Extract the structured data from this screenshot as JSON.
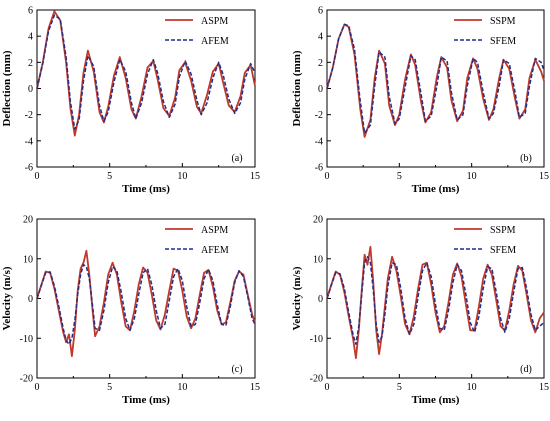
{
  "colors": {
    "series1": "#c0392b",
    "series2": "#1f2f8c"
  },
  "chart_data": [
    {
      "type": "line",
      "panel_tag": "(a)",
      "xlabel": "Time (ms)",
      "ylabel": "Deflection (mm)",
      "xlim": [
        0,
        15
      ],
      "ylim": [
        -6,
        6
      ],
      "xticks": [
        "0",
        "5",
        "10",
        "15"
      ],
      "yticks": [
        "6",
        "4",
        "2",
        "0",
        "-2",
        "-4",
        "-6"
      ],
      "legend_position": "top-right",
      "series": [
        {
          "name": "ASPM",
          "style": "solid",
          "x": [
            0,
            0.4,
            0.8,
            1.2,
            1.6,
            2.0,
            2.3,
            2.6,
            2.9,
            3.2,
            3.5,
            3.9,
            4.3,
            4.6,
            4.9,
            5.3,
            5.7,
            6.1,
            6.5,
            6.8,
            7.2,
            7.6,
            8.0,
            8.3,
            8.7,
            9.1,
            9.5,
            9.8,
            10.2,
            10.6,
            11.0,
            11.3,
            11.7,
            12.1,
            12.5,
            12.8,
            13.2,
            13.6,
            14.0,
            14.3,
            14.7,
            15.0
          ],
          "y": [
            0,
            2.0,
            4.6,
            5.9,
            5.2,
            2.0,
            -1.5,
            -3.6,
            -2.0,
            1.2,
            2.9,
            1.3,
            -1.8,
            -2.6,
            -1.4,
            1.0,
            2.4,
            0.8,
            -1.6,
            -2.3,
            -0.6,
            1.6,
            2.1,
            0.7,
            -1.5,
            -2.1,
            -0.7,
            1.4,
            2.0,
            0.6,
            -1.4,
            -1.9,
            -0.5,
            1.3,
            1.9,
            0.5,
            -1.3,
            -1.8,
            -0.6,
            1.2,
            1.8,
            0.2
          ]
        },
        {
          "name": "AFEM",
          "style": "dashed",
          "x": [
            0,
            0.4,
            0.8,
            1.2,
            1.6,
            2.0,
            2.3,
            2.6,
            2.9,
            3.2,
            3.5,
            3.9,
            4.3,
            4.6,
            4.9,
            5.3,
            5.7,
            6.1,
            6.5,
            6.8,
            7.2,
            7.6,
            8.0,
            8.3,
            8.7,
            9.1,
            9.5,
            9.8,
            10.2,
            10.6,
            11.0,
            11.3,
            11.7,
            12.1,
            12.5,
            12.8,
            13.2,
            13.6,
            14.0,
            14.3,
            14.7,
            15.0
          ],
          "y": [
            0,
            1.9,
            4.4,
            5.6,
            5.3,
            2.4,
            -1.0,
            -3.1,
            -2.4,
            0.6,
            2.5,
            1.7,
            -1.3,
            -2.5,
            -1.8,
            0.5,
            2.2,
            1.3,
            -1.1,
            -2.3,
            -1.1,
            1.1,
            2.2,
            1.2,
            -1.0,
            -2.2,
            -1.2,
            0.9,
            2.1,
            1.1,
            -0.9,
            -2.0,
            -1.1,
            0.8,
            2.0,
            1.1,
            -0.8,
            -1.9,
            -1.1,
            0.7,
            1.9,
            1.2
          ]
        }
      ]
    },
    {
      "type": "line",
      "panel_tag": "(b)",
      "xlabel": "Time (ms)",
      "ylabel": "Deflection (mm)",
      "xlim": [
        0,
        15
      ],
      "ylim": [
        -6,
        6
      ],
      "xticks": [
        "0",
        "5",
        "10",
        "15"
      ],
      "yticks": [
        "6",
        "4",
        "2",
        "0",
        "-2",
        "-4",
        "-6"
      ],
      "legend_position": "top-right",
      "series": [
        {
          "name": "SSPM",
          "style": "solid",
          "x": [
            0,
            0.4,
            0.8,
            1.2,
            1.5,
            1.9,
            2.3,
            2.6,
            3.0,
            3.3,
            3.6,
            4.0,
            4.3,
            4.7,
            5.0,
            5.4,
            5.8,
            6.1,
            6.5,
            6.8,
            7.2,
            7.6,
            7.9,
            8.3,
            8.6,
            9.0,
            9.4,
            9.7,
            10.1,
            10.4,
            10.8,
            11.2,
            11.5,
            11.9,
            12.2,
            12.6,
            13.0,
            13.3,
            13.7,
            14.0,
            14.4,
            14.8,
            15.0
          ],
          "y": [
            0,
            1.6,
            3.8,
            4.9,
            4.7,
            2.6,
            -1.6,
            -3.7,
            -2.4,
            0.8,
            2.9,
            1.9,
            -1.3,
            -2.8,
            -2.0,
            0.7,
            2.6,
            1.8,
            -1.0,
            -2.6,
            -1.8,
            0.9,
            2.4,
            1.6,
            -0.9,
            -2.5,
            -1.7,
            0.8,
            2.3,
            1.5,
            -0.8,
            -2.4,
            -1.6,
            0.8,
            2.2,
            1.5,
            -0.8,
            -2.3,
            -1.6,
            0.8,
            2.2,
            1.3,
            0.6
          ]
        },
        {
          "name": "SFEM",
          "style": "dashed",
          "x": [
            0,
            0.4,
            0.8,
            1.2,
            1.5,
            1.9,
            2.3,
            2.6,
            3.0,
            3.3,
            3.6,
            4.0,
            4.3,
            4.7,
            5.0,
            5.4,
            5.8,
            6.1,
            6.5,
            6.8,
            7.2,
            7.6,
            7.9,
            8.3,
            8.6,
            9.0,
            9.4,
            9.7,
            10.1,
            10.4,
            10.8,
            11.2,
            11.5,
            11.9,
            12.2,
            12.6,
            13.0,
            13.3,
            13.7,
            14.0,
            14.4,
            14.8,
            15.0
          ],
          "y": [
            0,
            1.6,
            3.8,
            4.9,
            4.8,
            3.0,
            -1.0,
            -3.4,
            -2.8,
            0.2,
            2.8,
            2.4,
            -0.6,
            -2.7,
            -2.3,
            0.1,
            2.5,
            2.2,
            -0.4,
            -2.5,
            -2.1,
            0.2,
            2.4,
            2.1,
            -0.3,
            -2.4,
            -2.0,
            0.2,
            2.3,
            2.0,
            -0.3,
            -2.3,
            -1.9,
            0.2,
            2.2,
            1.9,
            -0.3,
            -2.2,
            -1.9,
            0.2,
            2.3,
            2.0,
            1.4
          ]
        }
      ]
    },
    {
      "type": "line",
      "panel_tag": "(c)",
      "xlabel": "Time (ms)",
      "ylabel": "Velocity (m/s)",
      "xlim": [
        0,
        15
      ],
      "ylim": [
        -20,
        20
      ],
      "xticks": [
        "0",
        "5",
        "10",
        "15"
      ],
      "yticks": [
        "20",
        "10",
        "0",
        "-10",
        "-20"
      ],
      "legend_position": "top-right",
      "series": [
        {
          "name": "ASPM",
          "style": "solid",
          "x": [
            0,
            0.3,
            0.6,
            0.9,
            1.2,
            1.5,
            1.8,
            2.0,
            2.2,
            2.4,
            2.6,
            2.8,
            3.0,
            3.2,
            3.4,
            3.6,
            3.8,
            4.0,
            4.3,
            4.6,
            4.9,
            5.2,
            5.5,
            5.8,
            6.1,
            6.4,
            6.7,
            7.0,
            7.3,
            7.6,
            7.9,
            8.2,
            8.5,
            8.8,
            9.1,
            9.4,
            9.7,
            10.0,
            10.3,
            10.6,
            10.9,
            11.2,
            11.5,
            11.8,
            12.1,
            12.4,
            12.7,
            13.0,
            13.3,
            13.6,
            13.9,
            14.2,
            14.5,
            14.8,
            15.0
          ],
          "y": [
            0,
            3.5,
            6.8,
            6.5,
            2.5,
            -3.0,
            -8.5,
            -11.0,
            -9.0,
            -14.5,
            -8.0,
            2.0,
            7.5,
            9.0,
            12.0,
            6.0,
            -2.0,
            -9.5,
            -7.0,
            -1.0,
            6.0,
            9.0,
            6.0,
            -1.0,
            -7.0,
            -8.0,
            -3.0,
            3.5,
            7.8,
            6.5,
            1.0,
            -5.5,
            -7.8,
            -4.0,
            2.0,
            7.5,
            7.0,
            2.0,
            -4.5,
            -7.5,
            -5.0,
            1.0,
            6.5,
            7.2,
            3.0,
            -3.0,
            -6.5,
            -6.0,
            -1.0,
            4.5,
            6.8,
            6.0,
            1.0,
            -4.0,
            -6.0
          ]
        },
        {
          "name": "AFEM",
          "style": "dashed",
          "x": [
            0,
            0.3,
            0.6,
            0.9,
            1.2,
            1.5,
            1.8,
            2.0,
            2.2,
            2.4,
            2.6,
            2.8,
            3.0,
            3.2,
            3.4,
            3.6,
            3.8,
            4.0,
            4.3,
            4.6,
            4.9,
            5.2,
            5.5,
            5.8,
            6.1,
            6.4,
            6.7,
            7.0,
            7.3,
            7.6,
            7.9,
            8.2,
            8.5,
            8.8,
            9.1,
            9.4,
            9.7,
            10.0,
            10.3,
            10.6,
            10.9,
            11.2,
            11.5,
            11.8,
            12.1,
            12.4,
            12.7,
            13.0,
            13.3,
            13.6,
            13.9,
            14.2,
            14.5,
            14.8,
            15.0
          ],
          "y": [
            0,
            3.3,
            6.5,
            6.7,
            3.2,
            -2.0,
            -7.5,
            -10.5,
            -11.5,
            -10.0,
            -5.5,
            1.0,
            6.0,
            8.5,
            8.0,
            5.0,
            -1.0,
            -7.5,
            -8.0,
            -3.0,
            4.0,
            8.0,
            7.0,
            1.5,
            -5.0,
            -8.0,
            -5.0,
            1.0,
            6.5,
            7.5,
            3.5,
            -3.0,
            -7.5,
            -6.5,
            -0.5,
            5.5,
            7.5,
            4.5,
            -2.0,
            -7.0,
            -6.5,
            -1.0,
            5.0,
            7.3,
            4.5,
            -1.5,
            -6.5,
            -6.8,
            -2.0,
            4.0,
            7.0,
            5.5,
            0.5,
            -5.0,
            -6.5
          ]
        }
      ]
    },
    {
      "type": "line",
      "panel_tag": "(d)",
      "xlabel": "Time (ms)",
      "ylabel": "Velocity (m/s)",
      "xlim": [
        0,
        15
      ],
      "ylim": [
        -20,
        20
      ],
      "xticks": [
        "0",
        "5",
        "10",
        "15"
      ],
      "yticks": [
        "20",
        "10",
        "0",
        "-10",
        "-20"
      ],
      "legend_position": "top-right",
      "series": [
        {
          "name": "SSPM",
          "style": "solid",
          "x": [
            0,
            0.3,
            0.6,
            0.9,
            1.2,
            1.5,
            1.8,
            2.0,
            2.2,
            2.4,
            2.6,
            2.8,
            3.0,
            3.2,
            3.4,
            3.6,
            3.8,
            4.0,
            4.2,
            4.5,
            4.8,
            5.1,
            5.4,
            5.7,
            6.0,
            6.3,
            6.6,
            6.9,
            7.2,
            7.5,
            7.8,
            8.1,
            8.4,
            8.7,
            9.0,
            9.3,
            9.6,
            9.9,
            10.2,
            10.5,
            10.8,
            11.1,
            11.4,
            11.7,
            12.0,
            12.3,
            12.6,
            12.9,
            13.2,
            13.5,
            13.8,
            14.1,
            14.4,
            14.7,
            15.0
          ],
          "y": [
            0,
            3.5,
            6.8,
            6.0,
            1.5,
            -4.5,
            -10.0,
            -15.0,
            -8.0,
            2.0,
            11.0,
            8.5,
            13.0,
            4.0,
            -8.0,
            -14.0,
            -9.0,
            -2.0,
            5.0,
            10.5,
            7.0,
            0.5,
            -6.5,
            -9.0,
            -4.5,
            2.5,
            8.5,
            9.0,
            3.5,
            -3.5,
            -8.5,
            -7.0,
            -1.0,
            6.0,
            8.8,
            5.5,
            -1.5,
            -8.0,
            -8.0,
            -2.0,
            5.0,
            8.5,
            6.0,
            -0.5,
            -7.0,
            -8.0,
            -3.0,
            3.5,
            8.2,
            7.0,
            1.0,
            -5.5,
            -8.5,
            -5.0,
            -3.5
          ]
        },
        {
          "name": "SFEM",
          "style": "dashed",
          "x": [
            0,
            0.3,
            0.6,
            0.9,
            1.2,
            1.5,
            1.8,
            2.0,
            2.2,
            2.4,
            2.6,
            2.8,
            3.0,
            3.2,
            3.4,
            3.6,
            3.8,
            4.0,
            4.2,
            4.5,
            4.8,
            5.1,
            5.4,
            5.7,
            6.0,
            6.3,
            6.6,
            6.9,
            7.2,
            7.5,
            7.8,
            8.1,
            8.4,
            8.7,
            9.0,
            9.3,
            9.6,
            9.9,
            10.2,
            10.5,
            10.8,
            11.1,
            11.4,
            11.7,
            12.0,
            12.3,
            12.6,
            12.9,
            13.2,
            13.5,
            13.8,
            14.1,
            14.4,
            14.7,
            15.0
          ],
          "y": [
            0,
            3.3,
            6.5,
            6.2,
            2.5,
            -3.5,
            -9.0,
            -11.5,
            -7.0,
            1.0,
            9.0,
            10.5,
            9.0,
            2.0,
            -6.5,
            -11.0,
            -9.5,
            -4.0,
            3.0,
            9.0,
            8.5,
            2.5,
            -5.0,
            -9.0,
            -6.5,
            0.5,
            7.0,
            9.0,
            5.5,
            -1.5,
            -7.5,
            -8.0,
            -3.0,
            4.0,
            8.5,
            7.0,
            1.0,
            -6.0,
            -8.5,
            -4.5,
            2.5,
            8.0,
            7.5,
            1.5,
            -5.0,
            -8.5,
            -5.0,
            1.5,
            7.5,
            7.8,
            2.5,
            -4.0,
            -8.0,
            -7.0,
            -6.0
          ]
        }
      ]
    }
  ]
}
